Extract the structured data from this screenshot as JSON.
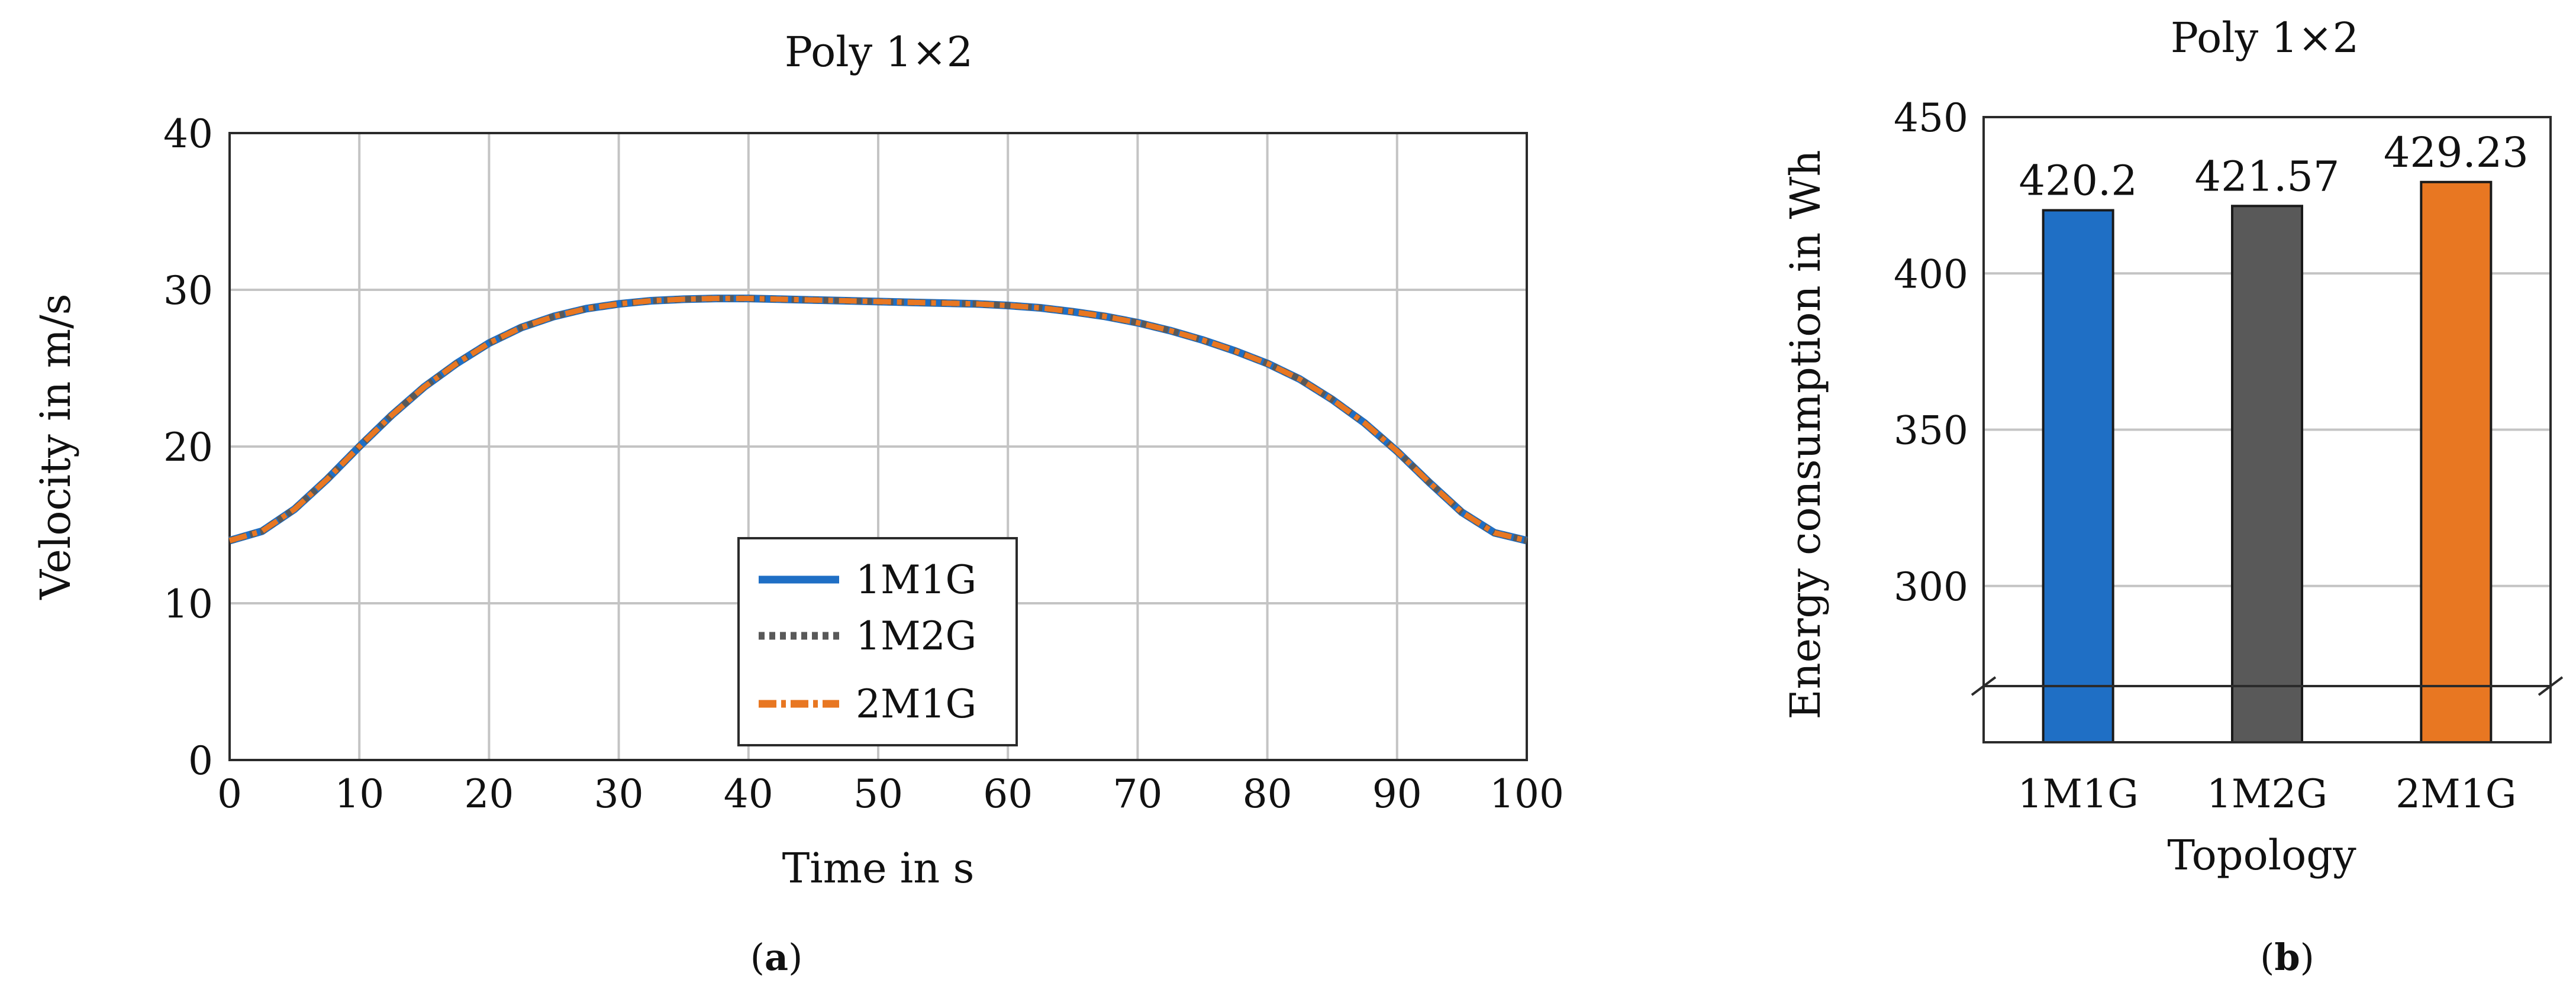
{
  "chart_data": [
    {
      "type": "line",
      "panel_label": "a",
      "title": "Poly 1×2",
      "xlabel": "Time in s",
      "ylabel": "Velocity in m/s",
      "xlim": [
        0,
        100
      ],
      "ylim": [
        0,
        40
      ],
      "xticks": [
        "0",
        "10",
        "20",
        "30",
        "40",
        "50",
        "60",
        "70",
        "80",
        "90",
        "100"
      ],
      "yticks": [
        "0",
        "10",
        "20",
        "30",
        "40"
      ],
      "grid": true,
      "legend_position": "bottom-center",
      "x": [
        0,
        2.5,
        5,
        7.5,
        10,
        12.5,
        15,
        17.5,
        20,
        22.5,
        25,
        27.5,
        30,
        32.5,
        35,
        37.5,
        40,
        42.5,
        45,
        47.5,
        50,
        52.5,
        55,
        57.5,
        60,
        62.5,
        65,
        67.5,
        70,
        72.5,
        75,
        77.5,
        80,
        82.5,
        85,
        87.5,
        90,
        92.5,
        95,
        97.5,
        100
      ],
      "series": [
        {
          "name": "1M1G",
          "color": "#1f6fc5",
          "style": "solid",
          "values": [
            14.0,
            14.6,
            16.0,
            17.9,
            20.0,
            22.0,
            23.8,
            25.3,
            26.6,
            27.6,
            28.3,
            28.8,
            29.1,
            29.3,
            29.4,
            29.45,
            29.45,
            29.4,
            29.35,
            29.3,
            29.25,
            29.2,
            29.15,
            29.1,
            29.0,
            28.85,
            28.6,
            28.3,
            27.9,
            27.4,
            26.8,
            26.1,
            25.3,
            24.3,
            23.0,
            21.5,
            19.7,
            17.7,
            15.8,
            14.5,
            14.0
          ]
        },
        {
          "name": "1M2G",
          "color": "#595959",
          "style": "dotted",
          "values": [
            14.0,
            14.6,
            16.0,
            17.9,
            20.0,
            22.0,
            23.8,
            25.3,
            26.6,
            27.6,
            28.3,
            28.8,
            29.1,
            29.3,
            29.4,
            29.45,
            29.45,
            29.4,
            29.35,
            29.3,
            29.25,
            29.2,
            29.15,
            29.1,
            29.0,
            28.85,
            28.6,
            28.3,
            27.9,
            27.4,
            26.8,
            26.1,
            25.3,
            24.3,
            23.0,
            21.5,
            19.7,
            17.7,
            15.8,
            14.5,
            14.0
          ]
        },
        {
          "name": "2M1G",
          "color": "#e87722",
          "style": "dashdot",
          "values": [
            14.0,
            14.6,
            16.0,
            17.9,
            20.0,
            22.0,
            23.8,
            25.3,
            26.6,
            27.6,
            28.3,
            28.8,
            29.1,
            29.3,
            29.4,
            29.45,
            29.45,
            29.4,
            29.35,
            29.3,
            29.25,
            29.2,
            29.15,
            29.1,
            29.0,
            28.85,
            28.6,
            28.3,
            27.9,
            27.4,
            26.8,
            26.1,
            25.3,
            24.3,
            23.0,
            21.5,
            19.7,
            17.7,
            15.8,
            14.5,
            14.0
          ]
        }
      ]
    },
    {
      "type": "bar",
      "panel_label": "b",
      "title": "Poly 1×2",
      "xlabel": "Topology",
      "ylabel": "Energy consumption in Wh",
      "ylim": [
        250,
        450
      ],
      "axis_break": true,
      "yticks": [
        "300",
        "350",
        "400",
        "450"
      ],
      "grid": true,
      "categories": [
        "1M1G",
        "1M2G",
        "2M1G"
      ],
      "values": [
        420.2,
        421.57,
        429.23
      ],
      "value_labels": [
        "420.2",
        "421.57",
        "429.23"
      ],
      "colors": [
        "#1f6fc5",
        "#595959",
        "#e87722"
      ]
    }
  ]
}
